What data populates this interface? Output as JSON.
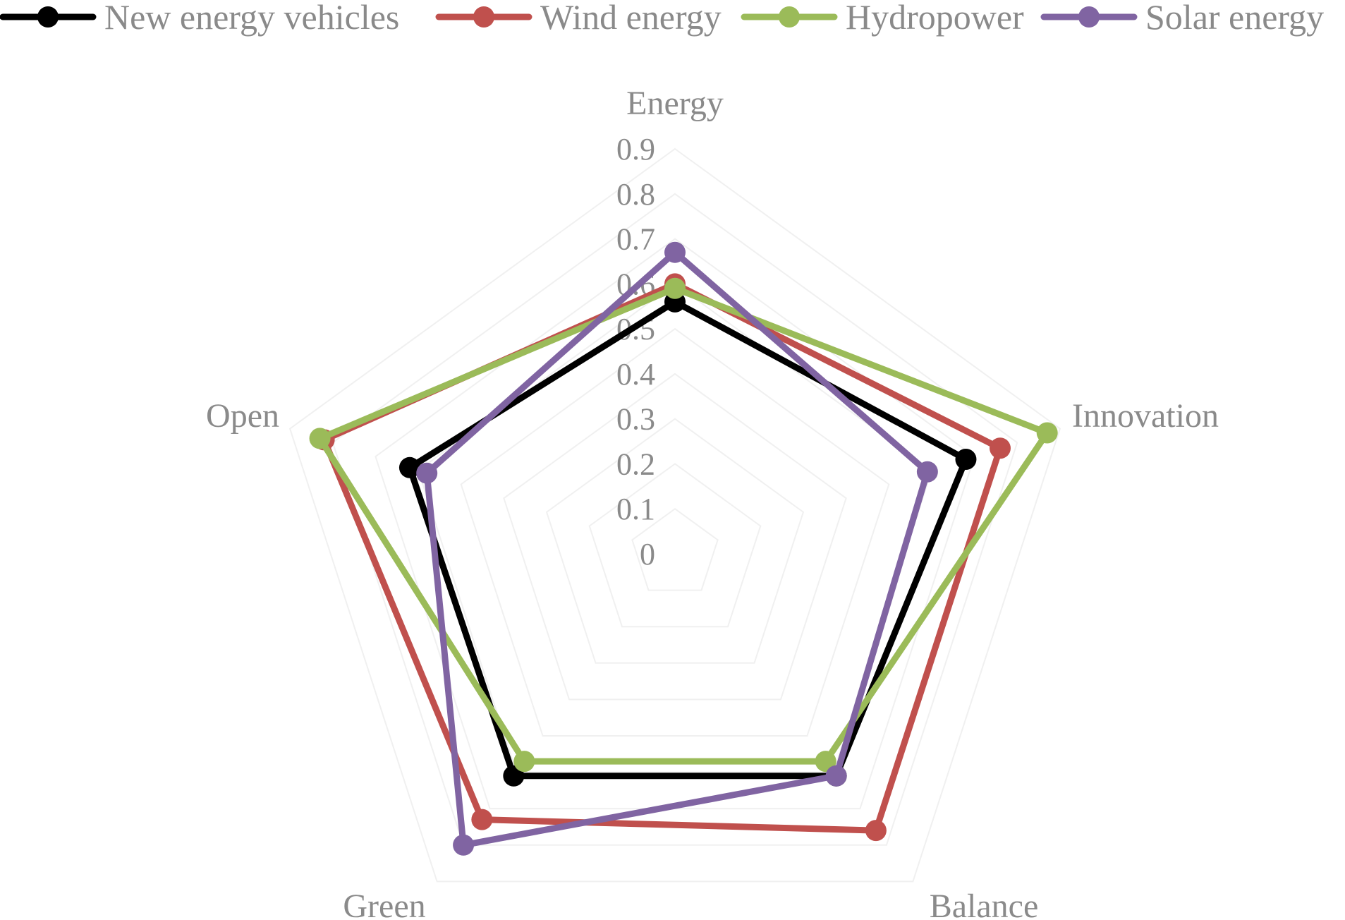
{
  "chart_data": {
    "type": "radar",
    "axes": [
      "Energy",
      "Innovation",
      "Balance",
      "Green",
      "Open"
    ],
    "ticks": [
      "0",
      "0.1",
      "0.2",
      "0.3",
      "0.4",
      "0.5",
      "0.6",
      "0.7",
      "0.8",
      "0.9"
    ],
    "range": [
      0,
      0.9
    ],
    "grid": true,
    "legend_position": "top",
    "series": [
      {
        "name": "New energy vehicles",
        "color": "#000000",
        "values": [
          0.56,
          0.68,
          0.61,
          0.61,
          0.62
        ]
      },
      {
        "name": "Wind energy",
        "color": "#c0504d",
        "values": [
          0.6,
          0.76,
          0.76,
          0.73,
          0.82
        ]
      },
      {
        "name": "Hydropower",
        "color": "#9bbb59",
        "values": [
          0.59,
          0.87,
          0.57,
          0.57,
          0.83
        ]
      },
      {
        "name": "Solar energy",
        "color": "#8064a2",
        "values": [
          0.67,
          0.59,
          0.61,
          0.8,
          0.58
        ]
      }
    ]
  }
}
